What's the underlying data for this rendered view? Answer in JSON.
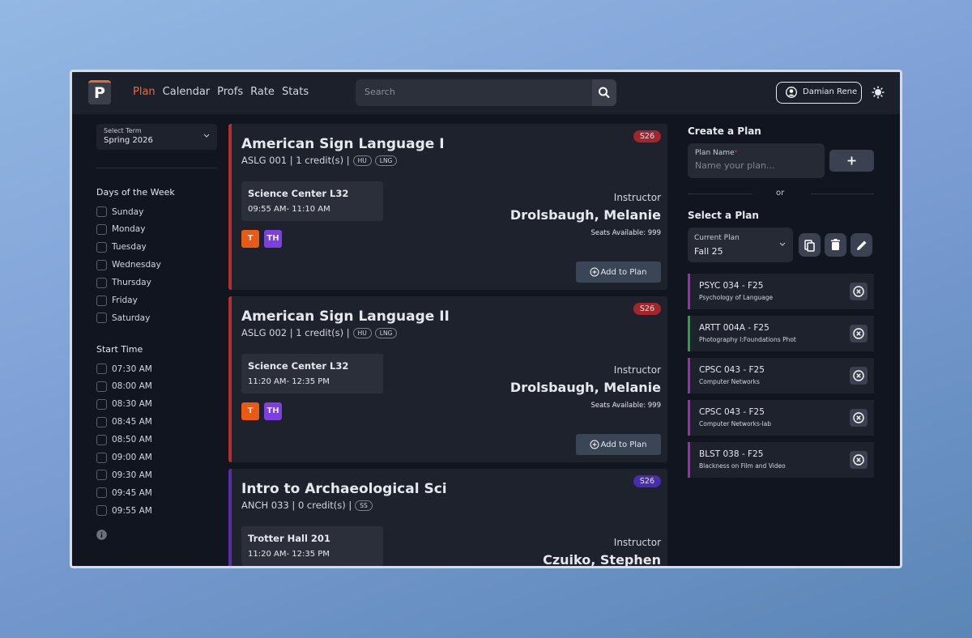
{
  "nav": {
    "logo": "P",
    "links": [
      "Plan",
      "Calendar",
      "Profs",
      "Rate",
      "Stats"
    ],
    "search_placeholder": "Search",
    "user": "Damian Rene"
  },
  "sidebar": {
    "term_label": "Select Term",
    "term": "Spring 2026",
    "days_heading": "Days of the Week",
    "days": [
      "Sunday",
      "Monday",
      "Tuesday",
      "Wednesday",
      "Thursday",
      "Friday",
      "Saturday"
    ],
    "time_heading": "Start Time",
    "times": [
      "07:30 AM",
      "08:00 AM",
      "08:30 AM",
      "08:45 AM",
      "08:50 AM",
      "09:00 AM",
      "09:30 AM",
      "09:45 AM",
      "09:55 AM"
    ]
  },
  "courses": [
    {
      "title": "American Sign Language I",
      "code_line": "ASLG 001 | 1 credit(s) |",
      "tags": [
        "HU",
        "LNG"
      ],
      "term": "S26",
      "term_color": "#a3262a",
      "accent": "#b3302f",
      "location": "Science Center L32",
      "time": "09:55 AM- 11:10 AM",
      "days": [
        {
          "label": "T",
          "color": "#ea5a14"
        },
        {
          "label": "TH",
          "color": "#7d3fe0"
        }
      ],
      "instructor_label": "Instructor",
      "instructor": "Drolsbaugh, Melanie",
      "seats": "Seats Available: 999",
      "button": "Add to Plan"
    },
    {
      "title": "American Sign Language II",
      "code_line": "ASLG 002 | 1 credit(s) |",
      "tags": [
        "HU",
        "LNG"
      ],
      "term": "S26",
      "term_color": "#a3262a",
      "accent": "#b3302f",
      "location": "Science Center L32",
      "time": "11:20 AM- 12:35 PM",
      "days": [
        {
          "label": "T",
          "color": "#ea5a14"
        },
        {
          "label": "TH",
          "color": "#7d3fe0"
        }
      ],
      "instructor_label": "Instructor",
      "instructor": "Drolsbaugh, Melanie",
      "seats": "Seats Available: 999",
      "button": "Add to Plan"
    },
    {
      "title": "Intro to Archaeological Sci",
      "code_line": "ANCH 033 | 0 credit(s) |",
      "tags": [
        "SS"
      ],
      "term": "S26",
      "term_color": "#4a2cb0",
      "accent": "#5a2ca8",
      "location": "Trotter Hall 201",
      "time": "11:20 AM- 12:35 PM",
      "instructor_label": "Instructor",
      "instructor": "Czuiko, Stephen"
    }
  ],
  "right": {
    "create_heading": "Create a Plan",
    "plan_name_label": "Plan Name",
    "plan_name_required": "*",
    "plan_name_placeholder": "Name your plan...",
    "or": "or",
    "select_heading": "Select a Plan",
    "current_plan_label": "Current Plan",
    "current_plan": "Fall 25",
    "plans": [
      {
        "code": "PSYC 034 - F25",
        "name": "Psychology of Language",
        "color": "#9a2fae"
      },
      {
        "code": "ARTT 004A - F25",
        "name": "Photography I:Foundations Phot",
        "color": "#2f9e44"
      },
      {
        "code": "CPSC 043 - F25",
        "name": "Computer Networks",
        "color": "#9a2fae"
      },
      {
        "code": "CPSC 043 - F25",
        "name": "Computer Networks-lab",
        "color": "#9a2fae"
      },
      {
        "code": "BLST 038 - F25",
        "name": "Blackness on Film and Video",
        "color": "#9a2fae"
      }
    ]
  }
}
